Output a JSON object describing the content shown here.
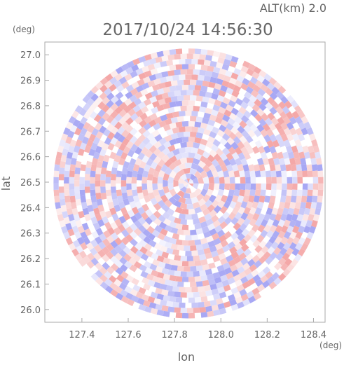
{
  "header": {
    "altitude_label": "ALT(km) 2.0",
    "timestamp": "2017/10/24 14:56:30"
  },
  "chart_data": {
    "type": "heatmap",
    "description_kind": "radar-ppi",
    "xlabel": "lon",
    "ylabel": "lat",
    "x_unit": "(deg)",
    "y_unit": "(deg)",
    "xlim": [
      127.24,
      128.45
    ],
    "ylim": [
      25.95,
      27.05
    ],
    "x_ticks": [
      "127.4",
      "127.6",
      "127.8",
      "128.0",
      "128.2",
      "128.4"
    ],
    "y_ticks": [
      "26.0",
      "26.1",
      "26.2",
      "26.3",
      "26.4",
      "26.5",
      "26.6",
      "26.7",
      "26.8",
      "26.9",
      "27.0"
    ],
    "center": {
      "lon": 127.86,
      "lat": 26.495
    },
    "radius_deg_lat": 0.53,
    "colors": {
      "positive": "#f4a8a8",
      "negative": "#a8a8f4",
      "neutral": "#ffffff",
      "frame": "#aaaaaa",
      "text": "#666666"
    }
  }
}
